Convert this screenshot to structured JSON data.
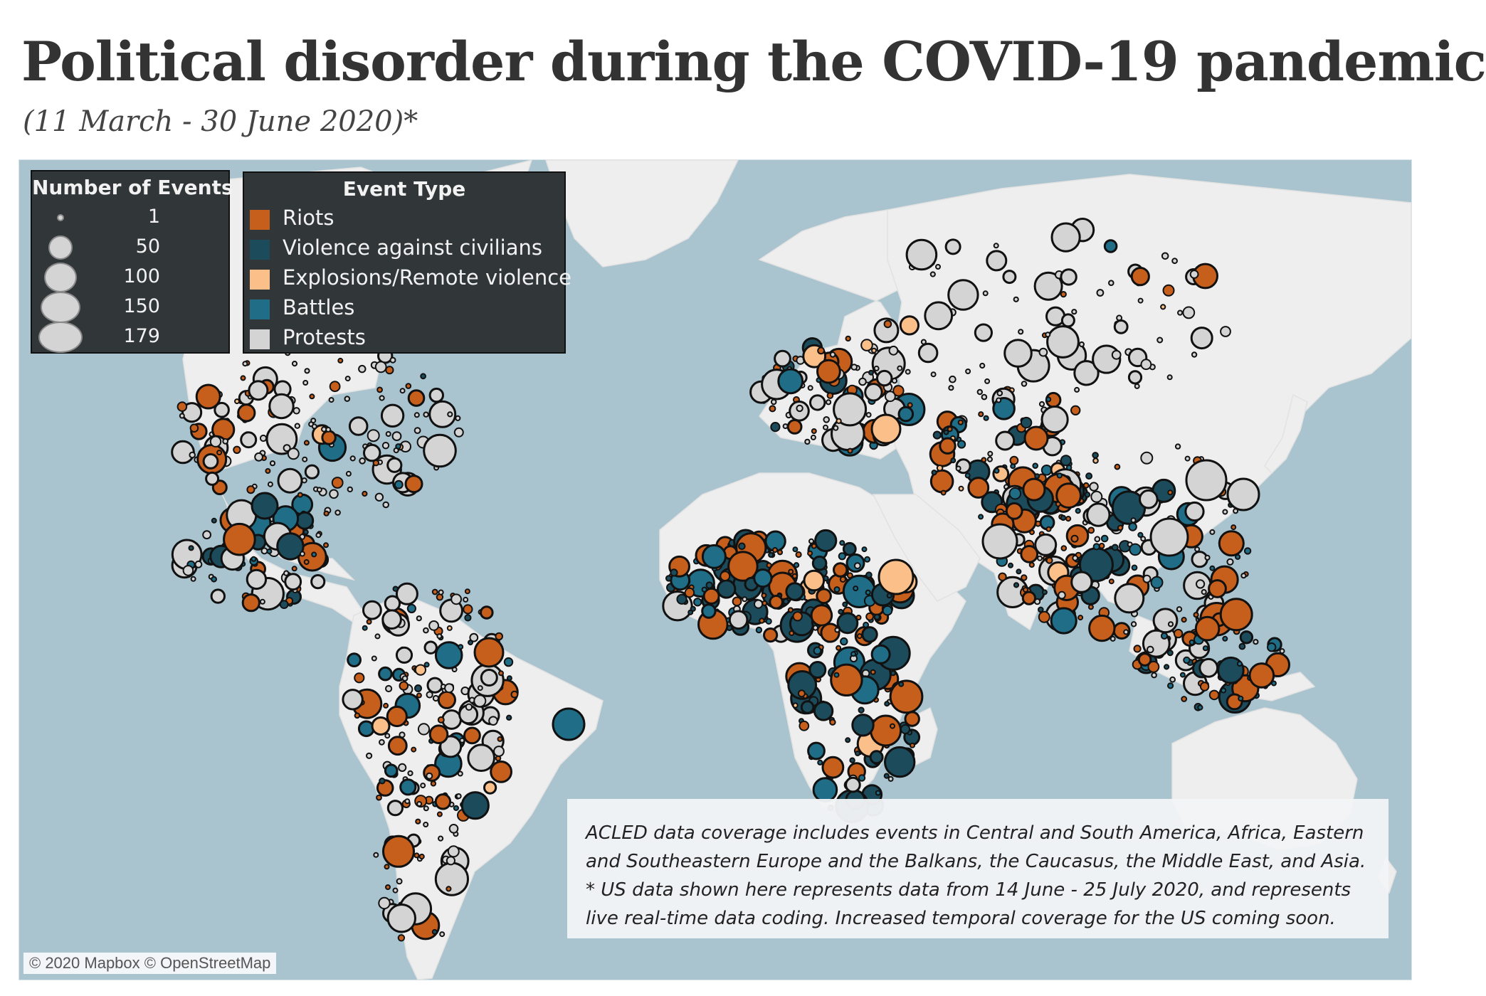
{
  "title": "Political disorder during the COVID-19 pandemic",
  "subtitle": "(11 March - 30 June 2020)*",
  "colors": {
    "ocean": "#a9c4cf",
    "land": "#eeeeee",
    "riots": "#c75f1c",
    "violence_against_civilians": "#1c4c5c",
    "explosions_remote_violence": "#fbc08a",
    "battles": "#1f6d86",
    "protests": "#d4d4d4",
    "legend_background": "#313639"
  },
  "size_legend": {
    "title": "Number of Events",
    "items": [
      {
        "value": 1,
        "label": "1"
      },
      {
        "value": 50,
        "label": "50"
      },
      {
        "value": 100,
        "label": "100"
      },
      {
        "value": 150,
        "label": "150"
      },
      {
        "value": 179,
        "label": "179"
      }
    ]
  },
  "type_legend": {
    "title": "Event Type",
    "items": [
      {
        "key": "riots",
        "label": "Riots",
        "color": "#c75f1c"
      },
      {
        "key": "violence_against_civilians",
        "label": "Violence against civilians",
        "color": "#1c4c5c"
      },
      {
        "key": "explosions_remote_violence",
        "label": "Explosions/Remote violence",
        "color": "#fbc08a"
      },
      {
        "key": "battles",
        "label": "Battles",
        "color": "#1f6d86"
      },
      {
        "key": "protests",
        "label": "Protests",
        "color": "#d4d4d4"
      }
    ]
  },
  "note": {
    "line1": "ACLED data coverage includes events in Central and South America, Africa, Eastern",
    "line2": "and Southeastern Europe and the Balkans, the Caucasus, the Middle East, and Asia.",
    "line3": "* US data shown here represents data from 14 June - 25 July 2020, and represents",
    "line4": "live real-time data coding. Increased temporal coverage for the US coming soon."
  },
  "attribution": "© 2020 Mapbox © OpenStreetMap"
}
